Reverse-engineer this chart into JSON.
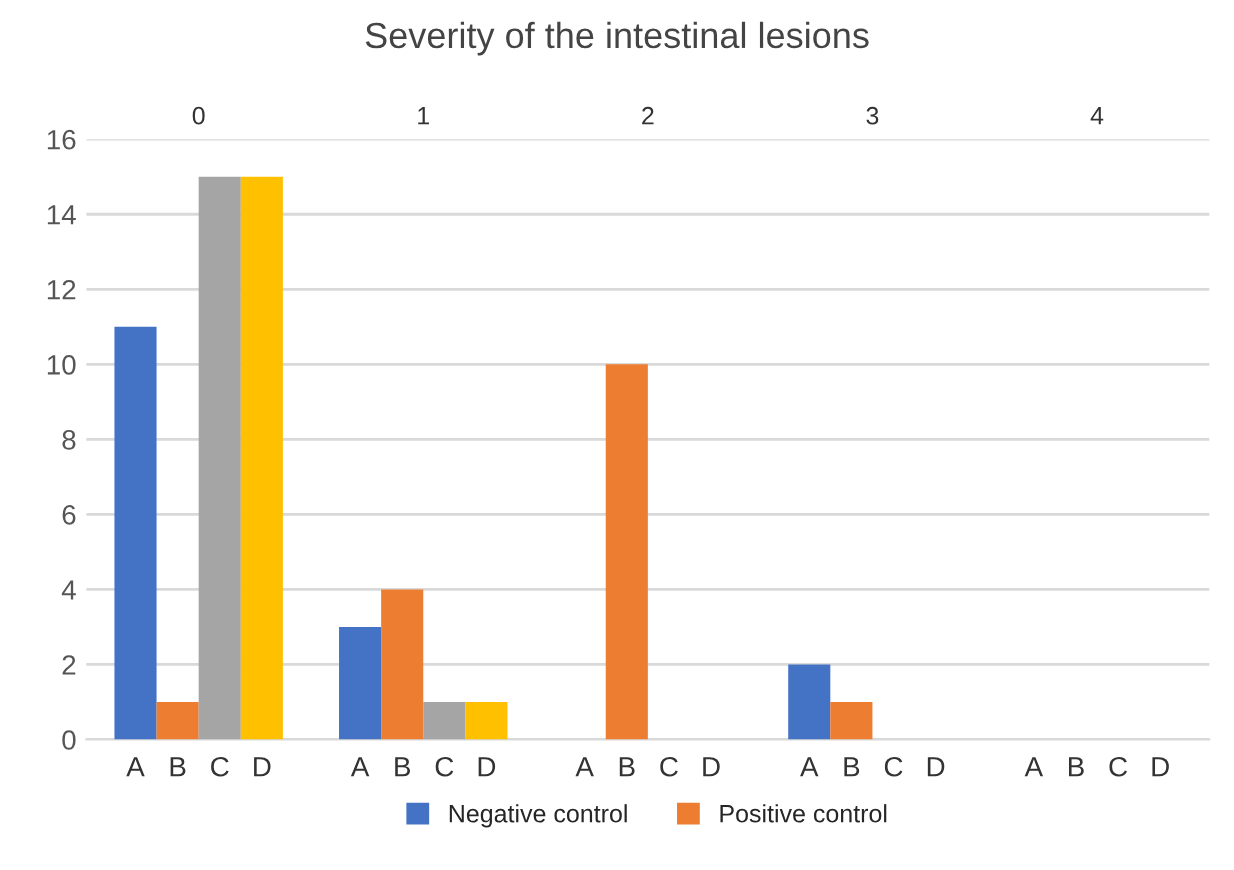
{
  "chart_data": {
    "type": "bar",
    "title": "Severity of the intestinal lesions",
    "categories": [
      "0",
      "1",
      "2",
      "3",
      "4"
    ],
    "series": [
      {
        "name": "Negative control",
        "color": "#4472c4",
        "values": [
          11,
          3,
          0,
          2,
          0
        ]
      },
      {
        "name": "Positive control",
        "color": "#ed7d31",
        "values": [
          1,
          4,
          10,
          1,
          0
        ]
      },
      {
        "color": "#a5a5a5",
        "values": [
          15,
          1,
          0,
          0,
          0
        ]
      },
      {
        "color": "#ffc000",
        "values": [
          15,
          1,
          0,
          0,
          0
        ]
      }
    ],
    "annotations": [
      "A",
      "B",
      "C",
      "D"
    ],
    "ylim": [
      0,
      16
    ],
    "yticks": [
      0,
      2,
      4,
      6,
      8,
      10,
      12,
      14,
      16
    ],
    "grid": "y",
    "legend": "bottom"
  }
}
